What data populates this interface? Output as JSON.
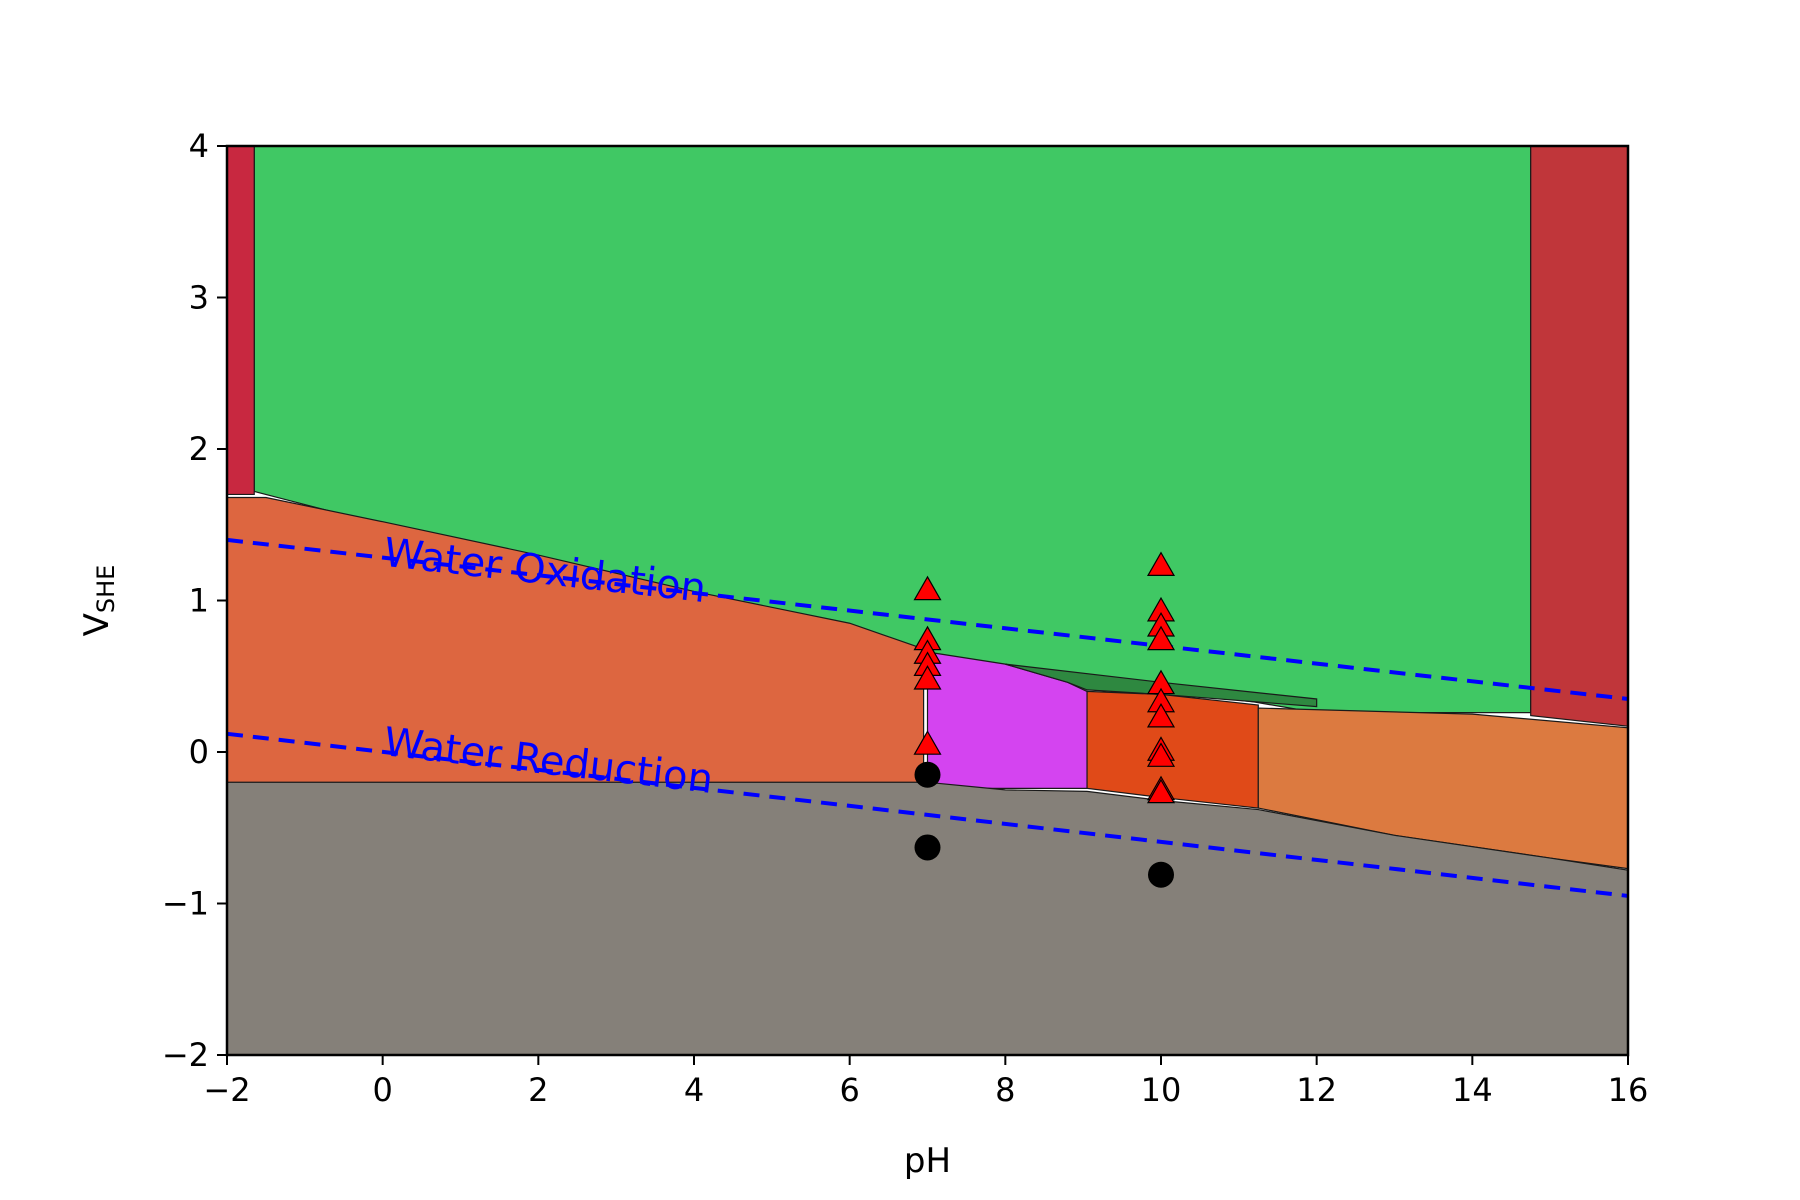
{
  "chart_data": {
    "type": "scatter",
    "xlabel": "pH",
    "ylabel_main": "V",
    "ylabel_sub": "SHE",
    "xlim": [
      -2,
      16
    ],
    "ylim": [
      -2,
      4
    ],
    "x_ticks": [
      -2,
      0,
      2,
      4,
      6,
      8,
      10,
      12,
      14,
      16
    ],
    "x_tick_labels": [
      "−2",
      "0",
      "2",
      "4",
      "6",
      "8",
      "10",
      "12",
      "14",
      "16"
    ],
    "y_ticks": [
      -2,
      -1,
      0,
      1,
      2,
      3,
      4
    ],
    "y_tick_labels": [
      "−2",
      "−1",
      "0",
      "1",
      "2",
      "3",
      "4"
    ],
    "grid": false,
    "regions": [
      {
        "color": "#40c864",
        "points": [
          [
            -1.65,
            4
          ],
          [
            14.75,
            4
          ],
          [
            14.75,
            0.26
          ],
          [
            12,
            0.26
          ],
          [
            11.2,
            0.33
          ],
          [
            10.2,
            0.39
          ],
          [
            9.1,
            0.46
          ],
          [
            8,
            0.55
          ],
          [
            7,
            0.65
          ],
          [
            6,
            0.82
          ],
          [
            4,
            1.05
          ],
          [
            2,
            1.25
          ],
          [
            0,
            1.5
          ],
          [
            -1.65,
            1.72
          ]
        ]
      },
      {
        "color": "#c82840",
        "points": [
          [
            -2,
            4
          ],
          [
            -1.65,
            4
          ],
          [
            -1.65,
            1.7
          ],
          [
            -2,
            1.7
          ]
        ]
      },
      {
        "color": "#c0363a",
        "points": [
          [
            14.75,
            4
          ],
          [
            16,
            4
          ],
          [
            16,
            0.17
          ],
          [
            14.75,
            0.24
          ]
        ]
      },
      {
        "color": "#dd6640",
        "points": [
          [
            -2,
            1.68
          ],
          [
            -1.5,
            1.68
          ],
          [
            0,
            1.52
          ],
          [
            2,
            1.3
          ],
          [
            4,
            1.06
          ],
          [
            6,
            0.85
          ],
          [
            6.95,
            0.68
          ],
          [
            6.95,
            -0.2
          ],
          [
            -2,
            -0.2
          ]
        ]
      },
      {
        "color": "#d444f0",
        "points": [
          [
            7,
            0.66
          ],
          [
            8,
            0.58
          ],
          [
            8.8,
            0.46
          ],
          [
            9.05,
            0.4
          ],
          [
            9.05,
            -0.24
          ],
          [
            7,
            -0.24
          ]
        ]
      },
      {
        "color": "#e04a18",
        "points": [
          [
            9.05,
            0.4
          ],
          [
            10,
            0.38
          ],
          [
            11.25,
            0.31
          ],
          [
            11.25,
            -0.37
          ],
          [
            10,
            -0.3
          ],
          [
            9.05,
            -0.24
          ]
        ]
      },
      {
        "color": "#dc7a40",
        "points": [
          [
            11.25,
            0.29
          ],
          [
            14,
            0.25
          ],
          [
            16,
            0.16
          ],
          [
            16,
            -0.77
          ],
          [
            15,
            -0.7
          ],
          [
            13,
            -0.55
          ],
          [
            11.25,
            -0.37
          ]
        ]
      },
      {
        "color": "#2e8840",
        "points": [
          [
            8,
            0.58
          ],
          [
            10,
            0.46
          ],
          [
            12,
            0.35
          ],
          [
            12,
            0.3
          ],
          [
            10,
            0.38
          ],
          [
            9.05,
            0.41
          ],
          [
            8.8,
            0.46
          ]
        ]
      },
      {
        "color": "#858079",
        "points": [
          [
            -2,
            -0.2
          ],
          [
            7,
            -0.2
          ],
          [
            8,
            -0.25
          ],
          [
            9.05,
            -0.26
          ],
          [
            10,
            -0.32
          ],
          [
            11.25,
            -0.38
          ],
          [
            13,
            -0.55
          ],
          [
            15,
            -0.7
          ],
          [
            16,
            -0.78
          ],
          [
            16,
            -2
          ],
          [
            -2,
            -2
          ]
        ]
      }
    ],
    "lines": [
      {
        "label": "Water Oxidation",
        "color": "#0000ff",
        "x": [
          -2,
          16
        ],
        "y": [
          1.4,
          0.35
        ]
      },
      {
        "label": "Water Reduction",
        "color": "#0000ff",
        "x": [
          -2,
          16
        ],
        "y": [
          0.12,
          -0.95
        ]
      }
    ],
    "triangles": {
      "color": "#ff0000",
      "points": [
        [
          7,
          1.07
        ],
        [
          7,
          0.74
        ],
        [
          7,
          0.65
        ],
        [
          7,
          0.57
        ],
        [
          7,
          0.48
        ],
        [
          7,
          0.05
        ],
        [
          10,
          1.23
        ],
        [
          10,
          0.93
        ],
        [
          10,
          0.83
        ],
        [
          10,
          0.74
        ],
        [
          10,
          0.45
        ],
        [
          10,
          0.33
        ],
        [
          10,
          0.23
        ],
        [
          10,
          0.01
        ],
        [
          10,
          -0.03
        ],
        [
          10,
          -0.25
        ],
        [
          10,
          -0.27
        ]
      ]
    },
    "circles": {
      "color": "#000000",
      "points": [
        [
          7,
          -0.15
        ],
        [
          7,
          -0.63
        ],
        [
          10,
          -0.81
        ]
      ]
    }
  }
}
